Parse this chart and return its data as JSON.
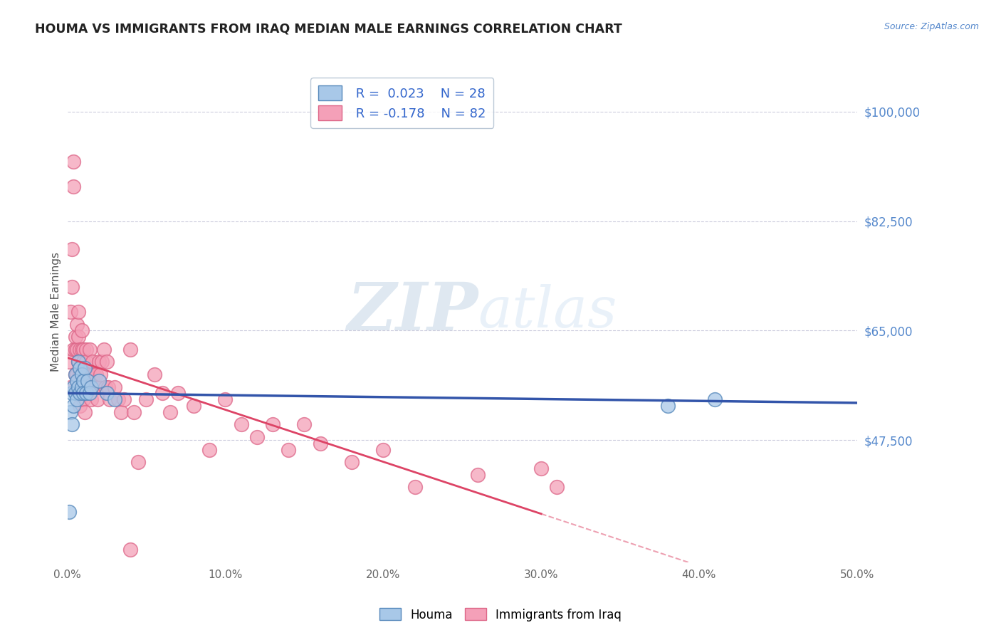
{
  "title": "HOUMA VS IMMIGRANTS FROM IRAQ MEDIAN MALE EARNINGS CORRELATION CHART",
  "source": "Source: ZipAtlas.com",
  "ylabel": "Median Male Earnings",
  "xlim": [
    0.0,
    0.5
  ],
  "ylim": [
    28000,
    108000
  ],
  "yticks": [
    47500,
    65000,
    82500,
    100000
  ],
  "xticks": [
    0.0,
    0.1,
    0.2,
    0.3,
    0.4,
    0.5
  ],
  "xtick_labels": [
    "0.0%",
    "10.0%",
    "20.0%",
    "30.0%",
    "40.0%",
    "50.0%"
  ],
  "ytick_labels": [
    "$47,500",
    "$65,000",
    "$82,500",
    "$100,000"
  ],
  "houma_color": "#a8c8e8",
  "iraq_color": "#f4a0b8",
  "houma_edge": "#5588bb",
  "iraq_edge": "#dd6688",
  "trend_houma_color": "#3355aa",
  "trend_iraq_color": "#dd4466",
  "watermark_zip": "ZIP",
  "watermark_atlas": "atlas",
  "legend_r_houma": "R =  0.023",
  "legend_n_houma": "N = 28",
  "legend_r_iraq": "R = -0.178",
  "legend_n_iraq": "N = 82",
  "houma_x": [
    0.001,
    0.002,
    0.003,
    0.003,
    0.004,
    0.004,
    0.005,
    0.005,
    0.006,
    0.006,
    0.007,
    0.007,
    0.008,
    0.008,
    0.009,
    0.009,
    0.01,
    0.01,
    0.011,
    0.012,
    0.013,
    0.014,
    0.015,
    0.02,
    0.025,
    0.03,
    0.38,
    0.41
  ],
  "houma_y": [
    36000,
    52000,
    55000,
    50000,
    56000,
    53000,
    58000,
    55000,
    57000,
    54000,
    60000,
    56000,
    59000,
    55000,
    58000,
    56000,
    57000,
    55000,
    59000,
    55000,
    57000,
    55000,
    56000,
    57000,
    55000,
    54000,
    53000,
    54000
  ],
  "iraq_x": [
    0.001,
    0.002,
    0.002,
    0.003,
    0.003,
    0.004,
    0.004,
    0.004,
    0.005,
    0.005,
    0.005,
    0.006,
    0.006,
    0.006,
    0.007,
    0.007,
    0.007,
    0.008,
    0.008,
    0.008,
    0.008,
    0.009,
    0.009,
    0.009,
    0.01,
    0.01,
    0.01,
    0.01,
    0.011,
    0.011,
    0.011,
    0.012,
    0.012,
    0.013,
    0.013,
    0.014,
    0.014,
    0.015,
    0.015,
    0.016,
    0.016,
    0.017,
    0.018,
    0.018,
    0.019,
    0.02,
    0.02,
    0.021,
    0.022,
    0.023,
    0.024,
    0.025,
    0.026,
    0.027,
    0.03,
    0.032,
    0.034,
    0.036,
    0.04,
    0.042,
    0.045,
    0.05,
    0.055,
    0.06,
    0.065,
    0.07,
    0.08,
    0.09,
    0.1,
    0.11,
    0.12,
    0.13,
    0.14,
    0.15,
    0.16,
    0.18,
    0.2,
    0.22,
    0.26,
    0.31,
    0.04,
    0.3
  ],
  "iraq_y": [
    60000,
    68000,
    56000,
    78000,
    72000,
    92000,
    88000,
    62000,
    64000,
    62000,
    58000,
    66000,
    62000,
    58000,
    64000,
    68000,
    60000,
    62000,
    58000,
    56000,
    53000,
    65000,
    62000,
    58000,
    60000,
    62000,
    58000,
    54000,
    58000,
    56000,
    52000,
    62000,
    60000,
    58000,
    56000,
    62000,
    58000,
    57000,
    54000,
    58000,
    60000,
    58000,
    56000,
    58000,
    54000,
    56000,
    60000,
    58000,
    60000,
    62000,
    56000,
    60000,
    56000,
    54000,
    56000,
    54000,
    52000,
    54000,
    62000,
    52000,
    44000,
    54000,
    58000,
    55000,
    52000,
    55000,
    53000,
    46000,
    54000,
    50000,
    48000,
    50000,
    46000,
    50000,
    47000,
    44000,
    46000,
    40000,
    42000,
    40000,
    30000,
    43000
  ],
  "trend_iraq_solid_end": 0.3,
  "trend_iraq_dash_end": 0.5
}
